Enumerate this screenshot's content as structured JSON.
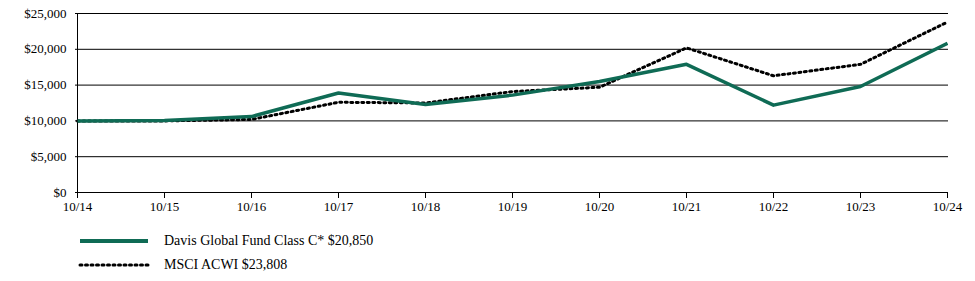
{
  "chart_data": {
    "type": "line",
    "x": [
      "10/14",
      "10/15",
      "10/16",
      "10/17",
      "10/18",
      "10/19",
      "10/20",
      "10/21",
      "10/22",
      "10/23",
      "10/24"
    ],
    "series": [
      {
        "name": "Davis Global Fund Class C* $20,850",
        "color": "#0f6b55",
        "line_style": "solid",
        "values": [
          10000,
          10050,
          10600,
          13900,
          12300,
          13600,
          15500,
          17900,
          12200,
          14800,
          20850
        ]
      },
      {
        "name": "MSCI ACWI $23,808",
        "color": "#000000",
        "line_style": "dotted",
        "values": [
          10000,
          10000,
          10200,
          12600,
          12500,
          14100,
          14700,
          20200,
          16300,
          17900,
          23808
        ]
      }
    ],
    "ylim": [
      0,
      25000
    ],
    "yticks": [
      {
        "value": 0,
        "label": "$0"
      },
      {
        "value": 5000,
        "label": "$5,000"
      },
      {
        "value": 10000,
        "label": "$10,000"
      },
      {
        "value": 15000,
        "label": "$15,000"
      },
      {
        "value": 20000,
        "label": "$20,000"
      },
      {
        "value": 25000,
        "label": "$25,000"
      }
    ],
    "grid": true,
    "legend": "bottom"
  }
}
